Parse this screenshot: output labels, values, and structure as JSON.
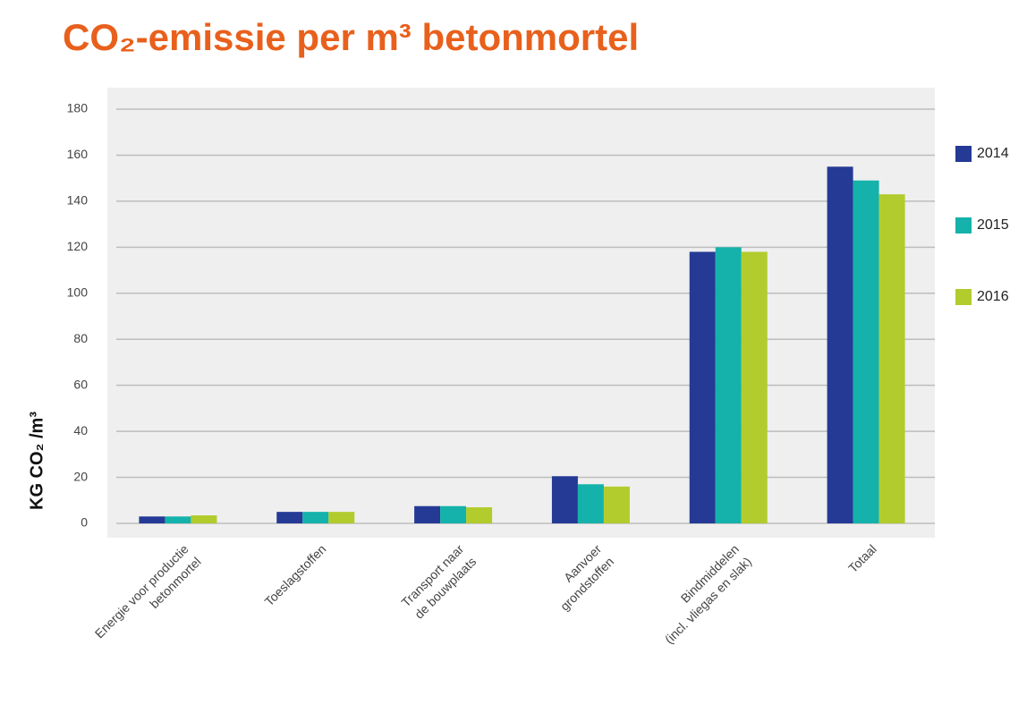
{
  "chart_data": {
    "type": "bar",
    "title": "CO₂-emissie per m³ betonmortel",
    "y_label": "KG CO₂ /m³",
    "categories": [
      [
        "Energie voor productie",
        "betonmortel"
      ],
      [
        "Toeslagstoffen"
      ],
      [
        "Transport naar",
        "de bouwplaats"
      ],
      [
        "Aanvoer",
        "grondstoffen"
      ],
      [
        "Bindmiddelen",
        "(incl. vliegas en slak)"
      ],
      [
        "Totaal"
      ]
    ],
    "series": [
      {
        "name": "2014",
        "color": "#243a95",
        "values": [
          3,
          5,
          7.5,
          20.5,
          118,
          155
        ]
      },
      {
        "name": "2015",
        "color": "#14b2ab",
        "values": [
          3,
          5,
          7.5,
          17,
          120,
          149
        ]
      },
      {
        "name": "2016",
        "color": "#b2cc2e",
        "values": [
          3.5,
          5,
          7,
          16,
          118,
          143
        ]
      }
    ],
    "ylim": [
      0,
      180
    ],
    "yticks": [
      0,
      20,
      40,
      60,
      80,
      100,
      120,
      140,
      160,
      180
    ],
    "grid": true,
    "legend": "right"
  }
}
